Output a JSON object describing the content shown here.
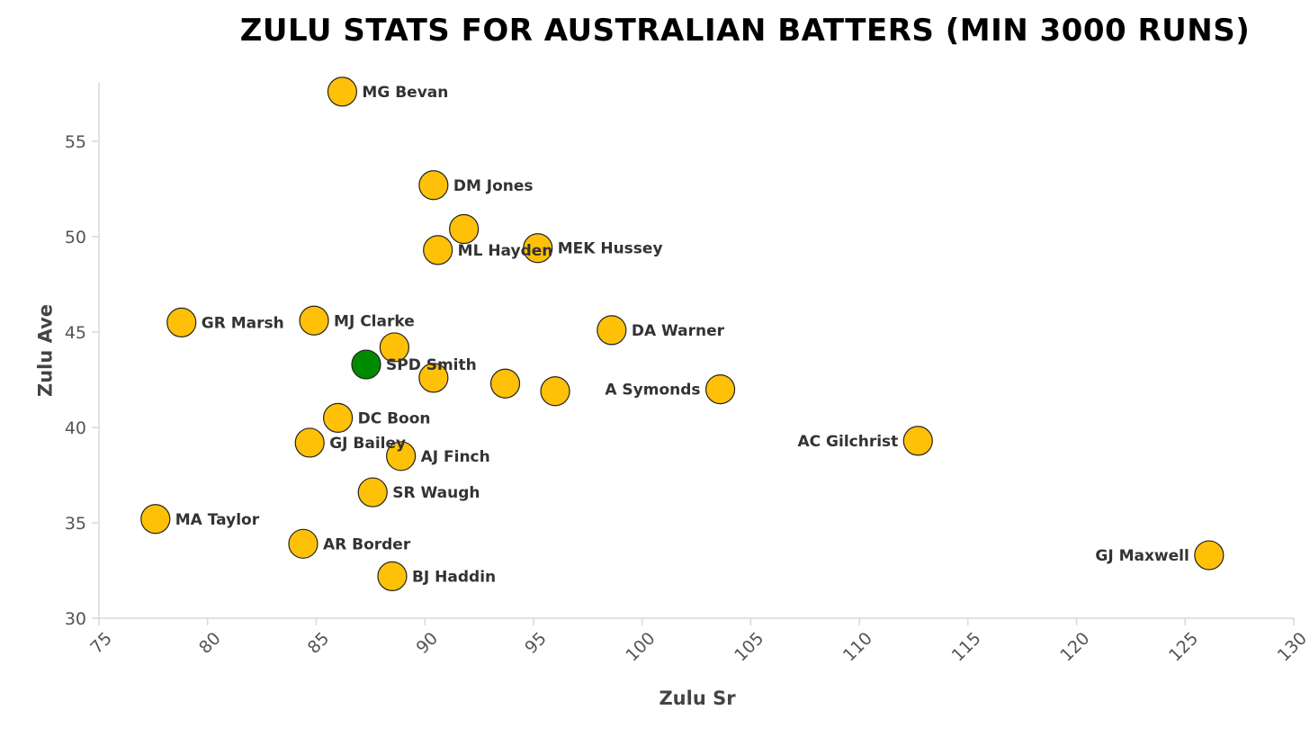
{
  "chart_data": {
    "type": "scatter",
    "title": "Zulu stats for Australian batters (min 3000 runs)",
    "xlabel": "Zulu Sr",
    "ylabel": "Zulu Ave",
    "xlim": [
      75,
      130
    ],
    "ylim": [
      30,
      58
    ],
    "xticks": [
      75,
      80,
      85,
      90,
      95,
      100,
      105,
      110,
      115,
      120,
      125,
      130
    ],
    "yticks": [
      30,
      35,
      40,
      45,
      50,
      55
    ],
    "grid": false,
    "colors": {
      "default": "#FFC107",
      "highlight": "#008A00",
      "outline": "#222222"
    },
    "points": [
      {
        "label": "MG Bevan",
        "x": 86.2,
        "y": 57.6,
        "side": "right"
      },
      {
        "label": "DM Jones",
        "x": 90.4,
        "y": 52.7,
        "side": "right"
      },
      {
        "label": "",
        "x": 91.8,
        "y": 50.4,
        "side": "right"
      },
      {
        "label": "ML Hayden",
        "x": 90.6,
        "y": 49.3,
        "side": "right"
      },
      {
        "label": "MEK Hussey",
        "x": 95.2,
        "y": 49.4,
        "side": "right"
      },
      {
        "label": "GR Marsh",
        "x": 78.8,
        "y": 45.5,
        "side": "right"
      },
      {
        "label": "MJ Clarke",
        "x": 84.9,
        "y": 45.6,
        "side": "right"
      },
      {
        "label": "DA Warner",
        "x": 98.6,
        "y": 45.1,
        "side": "right"
      },
      {
        "label": "",
        "x": 88.6,
        "y": 44.2,
        "side": "right"
      },
      {
        "label": "SPD Smith",
        "x": 87.3,
        "y": 43.3,
        "side": "right",
        "highlight": true
      },
      {
        "label": "",
        "x": 90.4,
        "y": 42.6,
        "side": "right"
      },
      {
        "label": "",
        "x": 93.7,
        "y": 42.3,
        "side": "right"
      },
      {
        "label": "",
        "x": 96.0,
        "y": 41.9,
        "side": "right"
      },
      {
        "label": "A Symonds",
        "x": 103.6,
        "y": 42.0,
        "side": "left"
      },
      {
        "label": "DC Boon",
        "x": 86.0,
        "y": 40.5,
        "side": "right"
      },
      {
        "label": "GJ Bailey",
        "x": 84.7,
        "y": 39.2,
        "side": "right"
      },
      {
        "label": "AJ Finch",
        "x": 88.9,
        "y": 38.5,
        "side": "right"
      },
      {
        "label": "AC Gilchrist",
        "x": 112.7,
        "y": 39.3,
        "side": "left"
      },
      {
        "label": "SR Waugh",
        "x": 87.6,
        "y": 36.6,
        "side": "right"
      },
      {
        "label": "MA Taylor",
        "x": 77.6,
        "y": 35.2,
        "side": "right"
      },
      {
        "label": "AR Border",
        "x": 84.4,
        "y": 33.9,
        "side": "right"
      },
      {
        "label": "BJ Haddin",
        "x": 88.5,
        "y": 32.2,
        "side": "right"
      },
      {
        "label": "GJ Maxwell",
        "x": 126.1,
        "y": 33.3,
        "side": "left"
      }
    ]
  }
}
